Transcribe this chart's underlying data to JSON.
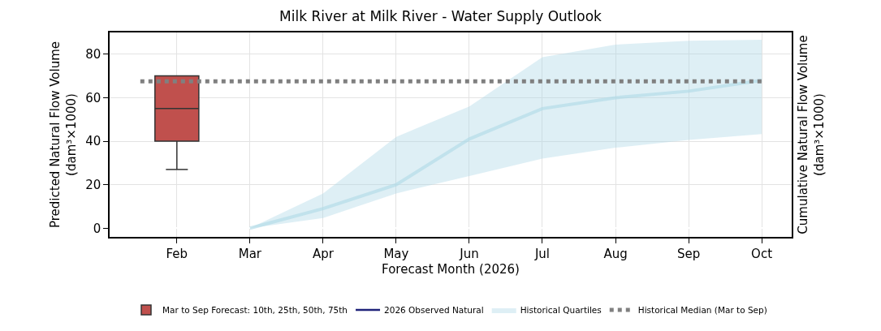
{
  "chart_data": {
    "type": "line",
    "title": "Milk River at Milk River - Water Supply Outlook",
    "xlabel": "Forecast Month (2026)",
    "ylabel": "Predicted Natural Flow Volume\n(dam³×1000)",
    "y2label": "Cumulative Natural Flow Volume\n(dam³×1000)",
    "categories": [
      "Feb",
      "Mar",
      "Apr",
      "May",
      "Jun",
      "Jul",
      "Aug",
      "Sep",
      "Oct"
    ],
    "ylim": [
      -4,
      90
    ],
    "yticks": [
      0,
      20,
      40,
      60,
      80
    ],
    "grid": true,
    "legend": "bottom",
    "series": [
      {
        "name": "Mar to Sep Forecast: 10th, 25th, 50th, 75th",
        "type": "box",
        "color": "#c0504d",
        "boxes": [
          {
            "low": 27,
            "q1": 40,
            "median": 55,
            "q3": 70,
            "high": 70
          },
          null,
          null,
          null,
          null,
          null,
          null,
          null,
          null
        ]
      },
      {
        "name": "2026 Observed Natural",
        "color": "#1f237a",
        "values": [
          null,
          null,
          null,
          null,
          null,
          null,
          null,
          null,
          null
        ]
      },
      {
        "name": "Historical Quartiles",
        "color": "#add8e6",
        "values": [
          null,
          0,
          9,
          20,
          41,
          55,
          60,
          63,
          68
        ],
        "lower": [
          null,
          0,
          4.7,
          16,
          24,
          32,
          37,
          40.6,
          43.3
        ],
        "upper": [
          null,
          0,
          16,
          42,
          56,
          78.6,
          84.4,
          86.2,
          86.6
        ]
      }
    ],
    "ref_lines": [
      {
        "axis": "y",
        "value": 67.5,
        "label": "Historical Median (Mar to Sep)",
        "color": "#808080",
        "line_style": "dotted"
      }
    ]
  }
}
